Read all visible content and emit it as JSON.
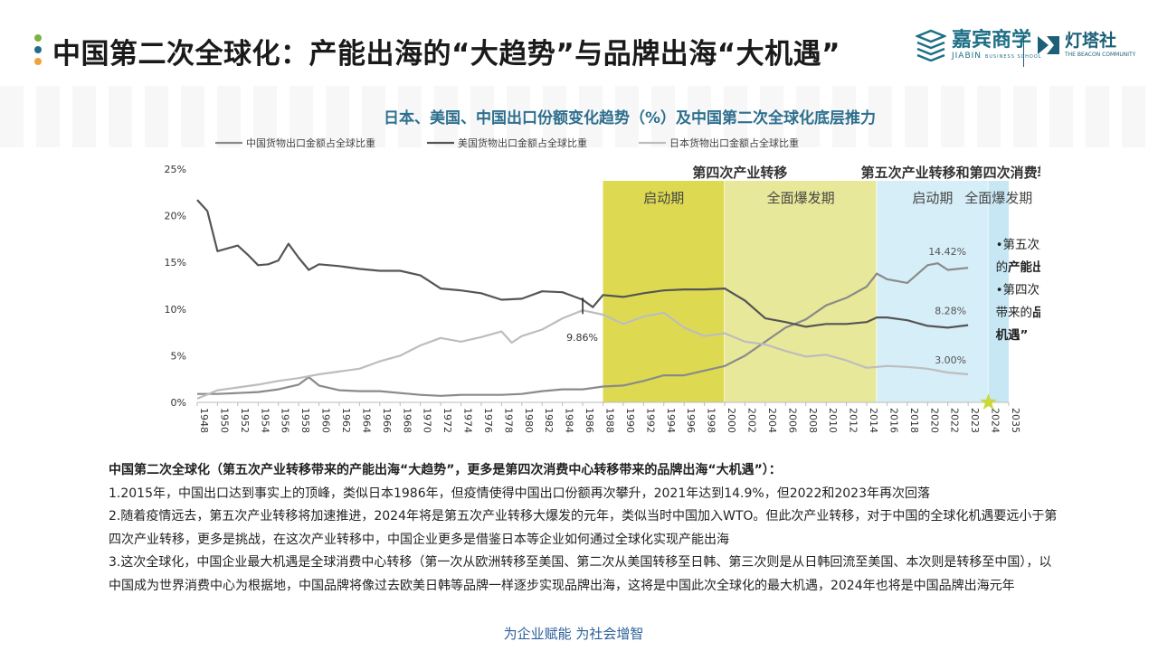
{
  "header": {
    "title": "中国第二次全球化：产能出海的“大趋势”与品牌出海“大机遇”",
    "logo_jiabin_cn": "嘉宾商学",
    "logo_jiabin_en": "JIABIN",
    "logo_jiabin_sub": "BUSINESS SCHOOL",
    "logo_beacon_cn": "灯塔社",
    "logo_beacon_en": "THE BEACON COMMUNITY",
    "colors": {
      "dot_green": "#7cb342",
      "dot_blue": "#1f6f8b",
      "dot_orange": "#f2a23a"
    }
  },
  "chart_data": {
    "type": "line",
    "title": "日本、美国、中国出口份额变化趋势（%）及中国第二次全球化底层推力",
    "xlabel": "",
    "ylabel": "",
    "ylim": [
      0,
      25
    ],
    "yticks": [
      "0%",
      "5%",
      "10%",
      "15%",
      "20%",
      "25%"
    ],
    "xticks": [
      "1948",
      "1950",
      "1952",
      "1954",
      "1956",
      "1958",
      "1960",
      "1962",
      "1964",
      "1966",
      "1968",
      "1970",
      "1972",
      "1974",
      "1976",
      "1978",
      "1980",
      "1982",
      "1984",
      "1986",
      "1988",
      "1990",
      "1992",
      "1994",
      "1996",
      "1998",
      "2000",
      "2002",
      "2004",
      "2006",
      "2008",
      "2010",
      "2012",
      "2014",
      "2016",
      "2018",
      "2020",
      "2022",
      "2023",
      "2024",
      "2035"
    ],
    "legend_position": "top",
    "grid": false,
    "series": [
      {
        "name": "中国货物出口金额占全球比重",
        "color": "#8a8a8a",
        "x": [
          1948,
          1950,
          1952,
          1954,
          1956,
          1958,
          1959,
          1960,
          1962,
          1964,
          1966,
          1968,
          1970,
          1972,
          1974,
          1976,
          1978,
          1980,
          1982,
          1984,
          1986,
          1988,
          1990,
          1992,
          1994,
          1996,
          1998,
          2000,
          2002,
          2004,
          2006,
          2008,
          2010,
          2012,
          2014,
          2015,
          2016,
          2018,
          2020,
          2021,
          2022,
          2023
        ],
        "values": [
          0.9,
          0.9,
          1.0,
          1.1,
          1.4,
          1.9,
          2.7,
          1.8,
          1.3,
          1.2,
          1.2,
          1.0,
          0.8,
          0.7,
          0.8,
          0.8,
          0.8,
          0.9,
          1.2,
          1.4,
          1.4,
          1.7,
          1.8,
          2.3,
          2.9,
          2.9,
          3.4,
          3.9,
          5.0,
          6.5,
          8.0,
          8.9,
          10.4,
          11.2,
          12.4,
          13.8,
          13.2,
          12.8,
          14.7,
          14.9,
          14.2,
          14.42
        ]
      },
      {
        "name": "美国货物出口金额占全球比重",
        "color": "#555555",
        "x": [
          1948,
          1949,
          1950,
          1951,
          1952,
          1953,
          1954,
          1955,
          1956,
          1957,
          1958,
          1959,
          1960,
          1962,
          1964,
          1966,
          1968,
          1970,
          1972,
          1974,
          1976,
          1978,
          1980,
          1982,
          1984,
          1986,
          1987,
          1988,
          1990,
          1992,
          1994,
          1996,
          1998,
          2000,
          2002,
          2004,
          2006,
          2008,
          2010,
          2012,
          2014,
          2015,
          2016,
          2018,
          2020,
          2022,
          2023
        ],
        "values": [
          21.7,
          20.5,
          16.2,
          16.5,
          16.8,
          15.8,
          14.7,
          14.8,
          15.2,
          17.0,
          15.5,
          14.2,
          14.8,
          14.6,
          14.3,
          14.1,
          14.1,
          13.6,
          12.2,
          12.0,
          11.7,
          11.0,
          11.1,
          11.9,
          11.8,
          11.0,
          10.2,
          11.5,
          11.3,
          11.7,
          12.0,
          12.1,
          12.1,
          12.2,
          10.9,
          9.0,
          8.6,
          8.1,
          8.4,
          8.4,
          8.6,
          9.1,
          9.1,
          8.8,
          8.2,
          8.0,
          8.28
        ]
      },
      {
        "name": "日本货物出口金额占全球比重",
        "color": "#bdbdbd",
        "x": [
          1948,
          1950,
          1952,
          1954,
          1956,
          1958,
          1960,
          1962,
          1964,
          1966,
          1968,
          1970,
          1972,
          1974,
          1976,
          1978,
          1979,
          1980,
          1982,
          1984,
          1986,
          1988,
          1990,
          1992,
          1994,
          1996,
          1998,
          2000,
          2002,
          2004,
          2006,
          2008,
          2010,
          2012,
          2014,
          2016,
          2018,
          2020,
          2022,
          2023
        ],
        "values": [
          0.4,
          1.3,
          1.6,
          1.9,
          2.3,
          2.6,
          3.0,
          3.3,
          3.6,
          4.4,
          5.0,
          6.1,
          6.9,
          6.5,
          7.0,
          7.6,
          6.4,
          7.1,
          7.8,
          9.0,
          9.86,
          9.4,
          8.4,
          9.2,
          9.6,
          8.0,
          7.1,
          7.4,
          6.5,
          6.2,
          5.5,
          4.9,
          5.1,
          4.5,
          3.7,
          3.9,
          3.8,
          3.6,
          3.2,
          3.0
        ]
      }
    ],
    "annotations": [
      {
        "year": 1986,
        "text": "9.86%"
      },
      {
        "year": 2023,
        "text": "14.42%"
      },
      {
        "year": 2023,
        "text": "8.28%"
      },
      {
        "year": 2023,
        "text": "3.00%"
      }
    ],
    "bands": [
      {
        "from": 1988,
        "to": 2000,
        "label": "启动期",
        "color": "#d9d63f"
      },
      {
        "from": 2000,
        "to": 2015,
        "label": "全面爆发期",
        "color": "#e6e68f"
      },
      {
        "from": 2015,
        "to": 2024,
        "label": "启动期",
        "color": "#d6eef7"
      },
      {
        "from": 2024,
        "to": 2035,
        "label": "全面爆发期",
        "color": "#c7e7f5"
      }
    ],
    "band_group_titles": [
      {
        "from": 1988,
        "to": 2015,
        "text": "第四次产业转移"
      },
      {
        "from": 2015,
        "to": 2035,
        "text": "第五次产业转移和第四次消费转移"
      }
    ],
    "box_text": {
      "line1": "•第五次产业转移带来",
      "line2_plain": "的",
      "line2_bold": "产能出海“大趋势”",
      "line3": "•第四次消费中心转移",
      "line4_plain": "带来的",
      "line4_bold": "品牌出海“大",
      "line5_bold": "机遇”"
    },
    "star_year": 2024,
    "star_color": "#c9d93a"
  },
  "notes": {
    "heading": "中国第二次全球化（第五次产业转移带来的产能出海“大趋势”，更多是第四次消费中心转移带来的品牌出海“大机遇”）：",
    "p1": "1.2015年，中国出口达到事实上的顶峰，类似日本1986年，但疫情使得中国出口份额再次攀升，2021年达到14.9%，但2022和2023年再次回落",
    "p2a": "2.随着疫情远去，第五次产业转移将加速推进，2024年将是第五次产业转移大爆发的元年，类似当时中国加入WTO。但此次产业转移，对于中国的全球化机遇要远小于第",
    "p2b": "四次产业转移，更多是挑战，在这次产业转移中，中国企业更多是借鉴日本等企业如何通过全球化实现产能出海",
    "p3a": "3.这次全球化，中国企业最大机遇是全球消费中心转移（第一次从欧洲转移至美国、第二次从美国转移至日韩、第三次则是从日韩回流至美国、本次则是转移至中国），以",
    "p3b": "中国成为世界消费中心为根据地，中国品牌将像过去欧美日韩等品牌一样逐步实现品牌出海，这将是中国此次全球化的最大机遇，2024年也将是中国品牌出海元年"
  },
  "footer": {
    "slogan": "为企业赋能  为社会增智"
  }
}
